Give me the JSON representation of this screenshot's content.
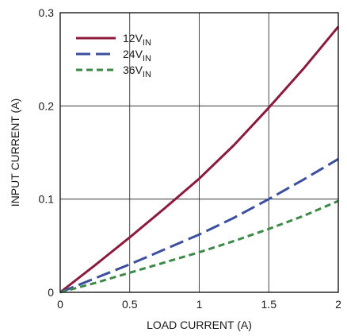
{
  "chart_data": {
    "type": "line",
    "title": "",
    "xlabel": "LOAD CURRENT (A)",
    "ylabel": "INPUT CURRENT (A)",
    "xlim": [
      0,
      2
    ],
    "ylim": [
      0,
      0.3
    ],
    "xticks": [
      0,
      0.5,
      1,
      1.5,
      2
    ],
    "xtick_labels": [
      "0",
      "0.5",
      "1",
      "1.5",
      "2"
    ],
    "yticks": [
      0,
      0.1,
      0.2,
      0.3
    ],
    "ytick_labels": [
      "0",
      "0.1",
      "0.2",
      "0.3"
    ],
    "grid": true,
    "legend_position": "top-left",
    "series": [
      {
        "name": "12V",
        "name_subscript": "IN",
        "color": "#8b1a3c",
        "dash": "solid",
        "x": [
          0,
          0.25,
          0.5,
          0.75,
          1.0,
          1.25,
          1.5,
          1.75,
          2.0
        ],
        "y": [
          0,
          0.029,
          0.059,
          0.09,
          0.122,
          0.158,
          0.198,
          0.24,
          0.285
        ]
      },
      {
        "name": "24V",
        "name_subscript": "IN",
        "color": "#3b4f9e",
        "dash": "long-dash",
        "x": [
          0,
          0.25,
          0.5,
          0.75,
          1.0,
          1.25,
          1.5,
          1.75,
          2.0
        ],
        "y": [
          0,
          0.015,
          0.03,
          0.046,
          0.062,
          0.08,
          0.1,
          0.121,
          0.143
        ]
      },
      {
        "name": "36V",
        "name_subscript": "IN",
        "color": "#3c8a48",
        "dash": "short-dash",
        "x": [
          0,
          0.25,
          0.5,
          0.75,
          1.0,
          1.25,
          1.5,
          1.75,
          2.0
        ],
        "y": [
          0,
          0.01,
          0.021,
          0.032,
          0.043,
          0.055,
          0.068,
          0.082,
          0.098
        ]
      }
    ]
  }
}
